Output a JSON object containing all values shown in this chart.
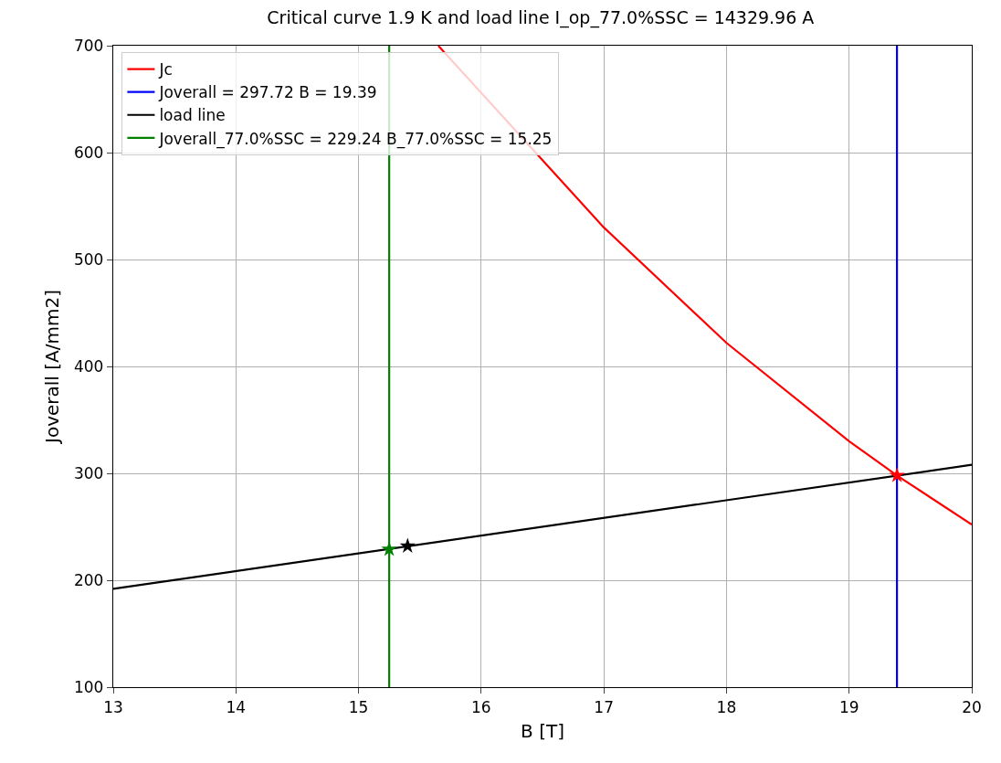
{
  "chart_data": {
    "type": "line",
    "title": "Critical curve 1.9 K and load line I_op_77.0%SSC = 14329.96 A",
    "xlabel": "B [T]",
    "ylabel": "Joverall [A/mm2]",
    "xlim": [
      13,
      20
    ],
    "xticks": [
      13,
      14,
      15,
      16,
      17,
      18,
      19,
      20
    ],
    "ylim": [
      100,
      700
    ],
    "yticks": [
      100,
      200,
      300,
      400,
      500,
      600,
      700
    ],
    "grid": true,
    "legend": "top left",
    "line_style": "solid",
    "series": [
      {
        "name": "Jc",
        "color": "#ff0000",
        "x": [
          15.65,
          17,
          18,
          19,
          19.39,
          20
        ],
        "values": [
          700,
          530,
          422,
          330,
          298,
          252
        ],
        "marker": "none"
      },
      {
        "name": "Joverall = 297.72 B = 19.39",
        "color": "#0000ff",
        "x": [
          19.39,
          19.39
        ],
        "values": [
          100,
          700
        ],
        "marker": "none"
      },
      {
        "name": "load line",
        "color": "#000000",
        "x": [
          13,
          20
        ],
        "values": [
          192,
          308
        ],
        "marker": "none"
      },
      {
        "name": "Joverall_77.0%SSC = 229.24 B_77.0%SSC = 15.25",
        "color": "#008000",
        "x": [
          15.25,
          15.25
        ],
        "values": [
          100,
          700
        ],
        "marker": "none"
      },
      {
        "type": "scatter",
        "color": "#000000",
        "x": [
          15.4
        ],
        "values": [
          232
        ],
        "marker": "star"
      },
      {
        "type": "scatter",
        "color": "#008000",
        "x": [
          15.25
        ],
        "values": [
          229
        ],
        "marker": "star"
      },
      {
        "type": "scatter",
        "color": "#ff0000",
        "x": [
          19.39
        ],
        "values": [
          298
        ],
        "marker": "star"
      }
    ]
  }
}
